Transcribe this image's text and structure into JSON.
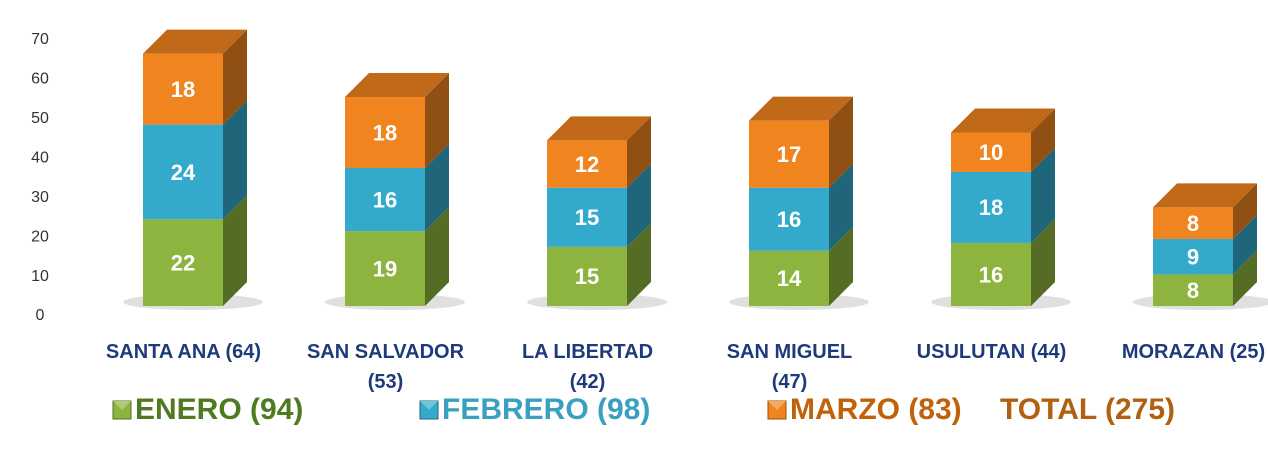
{
  "chart_data": {
    "type": "bar3d_stacked",
    "categories": [
      "SANTA ANA (64)",
      "SAN SALVADOR (53)",
      "LA LIBERTAD (42)",
      "SAN MIGUEL (47)",
      "USULUTAN (44)",
      "MORAZAN (25)"
    ],
    "series": [
      {
        "name": "ENERO (94)",
        "color": "#8db43e",
        "values": [
          22,
          19,
          15,
          14,
          16,
          8
        ]
      },
      {
        "name": "FEBRERO (98)",
        "color": "#33aacc",
        "values": [
          24,
          16,
          15,
          16,
          18,
          9
        ]
      },
      {
        "name": "MARZO (83)",
        "color": "#f0841f",
        "values": [
          18,
          18,
          12,
          17,
          10,
          8
        ]
      }
    ],
    "total_label": "TOTAL (275)",
    "ylim": [
      0,
      70
    ],
    "yticks": [
      0,
      10,
      20,
      30,
      40,
      50,
      60,
      70
    ],
    "grid": false,
    "legend": "bottom"
  }
}
